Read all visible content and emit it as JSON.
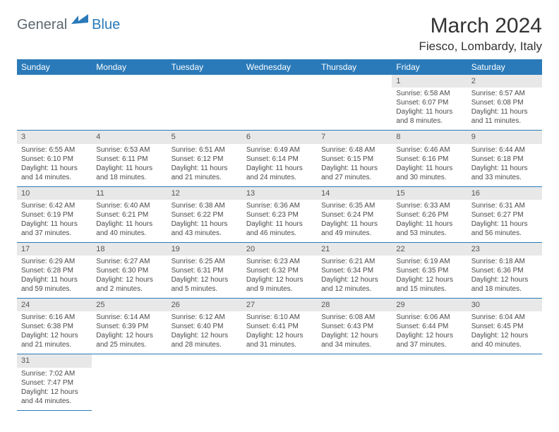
{
  "brand": {
    "general": "General",
    "blue": "Blue"
  },
  "title": "March 2024",
  "location": "Fiesco, Lombardy, Italy",
  "colors": {
    "header_bg": "#2a7ab9",
    "header_text": "#ffffff",
    "daynum_bg": "#e8e8e8",
    "row_border": "#2a7ab9",
    "text": "#4a4a4a",
    "logo_gray": "#5b6770",
    "logo_blue": "#2a7ab9"
  },
  "day_headers": [
    "Sunday",
    "Monday",
    "Tuesday",
    "Wednesday",
    "Thursday",
    "Friday",
    "Saturday"
  ],
  "weeks": [
    [
      null,
      null,
      null,
      null,
      null,
      {
        "n": "1",
        "sr": "Sunrise: 6:58 AM",
        "ss": "Sunset: 6:07 PM",
        "d1": "Daylight: 11 hours",
        "d2": "and 8 minutes."
      },
      {
        "n": "2",
        "sr": "Sunrise: 6:57 AM",
        "ss": "Sunset: 6:08 PM",
        "d1": "Daylight: 11 hours",
        "d2": "and 11 minutes."
      }
    ],
    [
      {
        "n": "3",
        "sr": "Sunrise: 6:55 AM",
        "ss": "Sunset: 6:10 PM",
        "d1": "Daylight: 11 hours",
        "d2": "and 14 minutes."
      },
      {
        "n": "4",
        "sr": "Sunrise: 6:53 AM",
        "ss": "Sunset: 6:11 PM",
        "d1": "Daylight: 11 hours",
        "d2": "and 18 minutes."
      },
      {
        "n": "5",
        "sr": "Sunrise: 6:51 AM",
        "ss": "Sunset: 6:12 PM",
        "d1": "Daylight: 11 hours",
        "d2": "and 21 minutes."
      },
      {
        "n": "6",
        "sr": "Sunrise: 6:49 AM",
        "ss": "Sunset: 6:14 PM",
        "d1": "Daylight: 11 hours",
        "d2": "and 24 minutes."
      },
      {
        "n": "7",
        "sr": "Sunrise: 6:48 AM",
        "ss": "Sunset: 6:15 PM",
        "d1": "Daylight: 11 hours",
        "d2": "and 27 minutes."
      },
      {
        "n": "8",
        "sr": "Sunrise: 6:46 AM",
        "ss": "Sunset: 6:16 PM",
        "d1": "Daylight: 11 hours",
        "d2": "and 30 minutes."
      },
      {
        "n": "9",
        "sr": "Sunrise: 6:44 AM",
        "ss": "Sunset: 6:18 PM",
        "d1": "Daylight: 11 hours",
        "d2": "and 33 minutes."
      }
    ],
    [
      {
        "n": "10",
        "sr": "Sunrise: 6:42 AM",
        "ss": "Sunset: 6:19 PM",
        "d1": "Daylight: 11 hours",
        "d2": "and 37 minutes."
      },
      {
        "n": "11",
        "sr": "Sunrise: 6:40 AM",
        "ss": "Sunset: 6:21 PM",
        "d1": "Daylight: 11 hours",
        "d2": "and 40 minutes."
      },
      {
        "n": "12",
        "sr": "Sunrise: 6:38 AM",
        "ss": "Sunset: 6:22 PM",
        "d1": "Daylight: 11 hours",
        "d2": "and 43 minutes."
      },
      {
        "n": "13",
        "sr": "Sunrise: 6:36 AM",
        "ss": "Sunset: 6:23 PM",
        "d1": "Daylight: 11 hours",
        "d2": "and 46 minutes."
      },
      {
        "n": "14",
        "sr": "Sunrise: 6:35 AM",
        "ss": "Sunset: 6:24 PM",
        "d1": "Daylight: 11 hours",
        "d2": "and 49 minutes."
      },
      {
        "n": "15",
        "sr": "Sunrise: 6:33 AM",
        "ss": "Sunset: 6:26 PM",
        "d1": "Daylight: 11 hours",
        "d2": "and 53 minutes."
      },
      {
        "n": "16",
        "sr": "Sunrise: 6:31 AM",
        "ss": "Sunset: 6:27 PM",
        "d1": "Daylight: 11 hours",
        "d2": "and 56 minutes."
      }
    ],
    [
      {
        "n": "17",
        "sr": "Sunrise: 6:29 AM",
        "ss": "Sunset: 6:28 PM",
        "d1": "Daylight: 11 hours",
        "d2": "and 59 minutes."
      },
      {
        "n": "18",
        "sr": "Sunrise: 6:27 AM",
        "ss": "Sunset: 6:30 PM",
        "d1": "Daylight: 12 hours",
        "d2": "and 2 minutes."
      },
      {
        "n": "19",
        "sr": "Sunrise: 6:25 AM",
        "ss": "Sunset: 6:31 PM",
        "d1": "Daylight: 12 hours",
        "d2": "and 5 minutes."
      },
      {
        "n": "20",
        "sr": "Sunrise: 6:23 AM",
        "ss": "Sunset: 6:32 PM",
        "d1": "Daylight: 12 hours",
        "d2": "and 9 minutes."
      },
      {
        "n": "21",
        "sr": "Sunrise: 6:21 AM",
        "ss": "Sunset: 6:34 PM",
        "d1": "Daylight: 12 hours",
        "d2": "and 12 minutes."
      },
      {
        "n": "22",
        "sr": "Sunrise: 6:19 AM",
        "ss": "Sunset: 6:35 PM",
        "d1": "Daylight: 12 hours",
        "d2": "and 15 minutes."
      },
      {
        "n": "23",
        "sr": "Sunrise: 6:18 AM",
        "ss": "Sunset: 6:36 PM",
        "d1": "Daylight: 12 hours",
        "d2": "and 18 minutes."
      }
    ],
    [
      {
        "n": "24",
        "sr": "Sunrise: 6:16 AM",
        "ss": "Sunset: 6:38 PM",
        "d1": "Daylight: 12 hours",
        "d2": "and 21 minutes."
      },
      {
        "n": "25",
        "sr": "Sunrise: 6:14 AM",
        "ss": "Sunset: 6:39 PM",
        "d1": "Daylight: 12 hours",
        "d2": "and 25 minutes."
      },
      {
        "n": "26",
        "sr": "Sunrise: 6:12 AM",
        "ss": "Sunset: 6:40 PM",
        "d1": "Daylight: 12 hours",
        "d2": "and 28 minutes."
      },
      {
        "n": "27",
        "sr": "Sunrise: 6:10 AM",
        "ss": "Sunset: 6:41 PM",
        "d1": "Daylight: 12 hours",
        "d2": "and 31 minutes."
      },
      {
        "n": "28",
        "sr": "Sunrise: 6:08 AM",
        "ss": "Sunset: 6:43 PM",
        "d1": "Daylight: 12 hours",
        "d2": "and 34 minutes."
      },
      {
        "n": "29",
        "sr": "Sunrise: 6:06 AM",
        "ss": "Sunset: 6:44 PM",
        "d1": "Daylight: 12 hours",
        "d2": "and 37 minutes."
      },
      {
        "n": "30",
        "sr": "Sunrise: 6:04 AM",
        "ss": "Sunset: 6:45 PM",
        "d1": "Daylight: 12 hours",
        "d2": "and 40 minutes."
      }
    ],
    [
      {
        "n": "31",
        "sr": "Sunrise: 7:02 AM",
        "ss": "Sunset: 7:47 PM",
        "d1": "Daylight: 12 hours",
        "d2": "and 44 minutes."
      },
      null,
      null,
      null,
      null,
      null,
      null
    ]
  ]
}
